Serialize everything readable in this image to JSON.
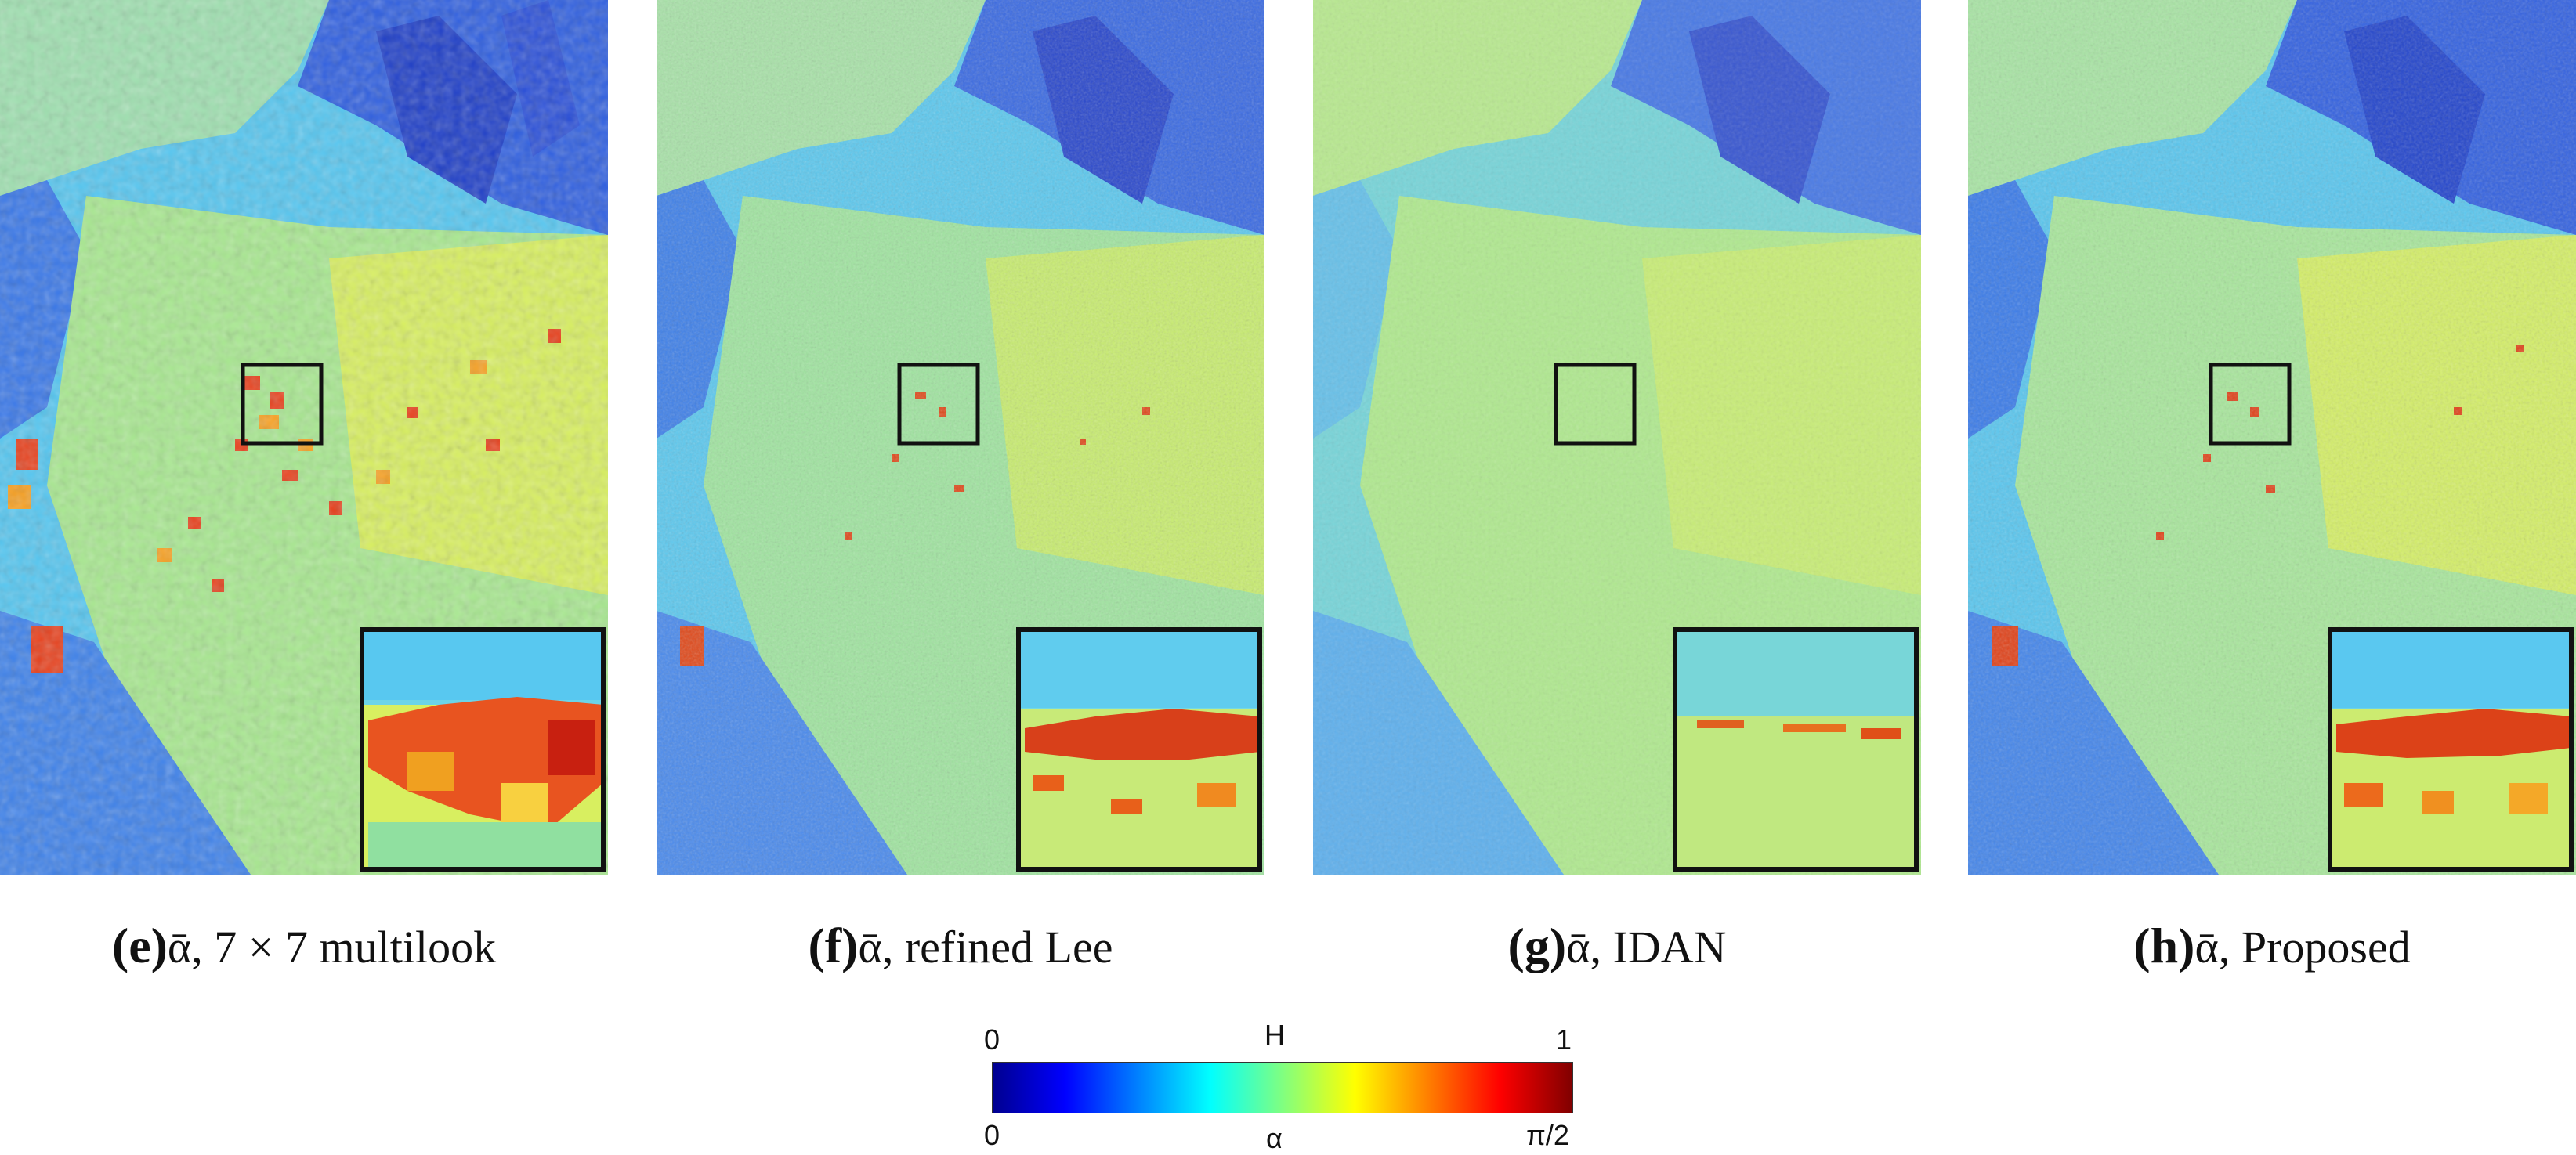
{
  "panels": [
    {
      "letter": "(e)",
      "caption": "ᾱ, 7 × 7 multilook",
      "style": "multilook"
    },
    {
      "letter": "(f)",
      "caption": "ᾱ, refined Lee",
      "style": "lee"
    },
    {
      "letter": "(g)",
      "caption": "ᾱ, IDAN",
      "style": "idan"
    },
    {
      "letter": "(h)",
      "caption": "ᾱ, Proposed",
      "style": "proposed"
    }
  ],
  "colorbar": {
    "top_title": "H",
    "top_min": "0",
    "top_max": "1",
    "bottom_title": "α",
    "bottom_min": "0",
    "bottom_max": "π/2",
    "colormap": "jet",
    "colors": [
      "#00008f",
      "#0000ff",
      "#0080ff",
      "#00ffff",
      "#80ff80",
      "#ffff00",
      "#ff8000",
      "#ff0000",
      "#800000"
    ]
  }
}
